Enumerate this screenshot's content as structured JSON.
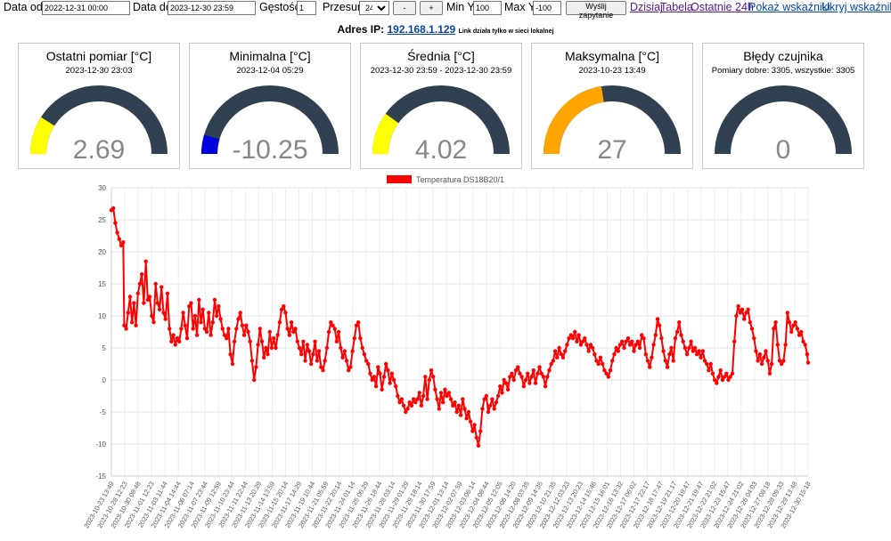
{
  "toolbar": {
    "date_from_label": "Data od",
    "date_from_value": "2022-12-31 00:00",
    "date_to_label": "Data do",
    "date_to_value": "2023-12-30 23:59",
    "density_label": "Gęstość",
    "density_value": "1",
    "shift_label": "Przesuń",
    "shift_value": "24h",
    "minus_label": "-",
    "plus_label": "+",
    "min_y_label": "Min Y",
    "min_y_value": "100",
    "max_y_label": "Max Y",
    "max_y_value": "-100",
    "submit_label": "Wyślij zapytanie",
    "link_today": "Dzisiaj",
    "link_table": "Tabela",
    "link_last24": "Ostatnie 24h",
    "link_show": "Pokaż wskaźniki",
    "link_hide": "Ukryj wskaźniki"
  },
  "ip": {
    "label": "Adres IP:",
    "address": "192.168.1.129",
    "note": "Link działa tylko w sieci lokalnej"
  },
  "gauges": [
    {
      "title": "Ostatni pomiar [°C]",
      "subtitle": "2023-12-30 23:03",
      "value": "2.69",
      "fraction": 0.18,
      "color": "#ffff00"
    },
    {
      "title": "Minimalna [°C]",
      "subtitle": "2023-12-04 05:29",
      "value": "-10.25",
      "fraction": 0.09,
      "color": "#0000dd"
    },
    {
      "title": "Średnia [°C]",
      "subtitle": "2023-12-30 23:59 - 2023-12-30 23:59",
      "value": "4.02",
      "fraction": 0.2,
      "color": "#ffff00"
    },
    {
      "title": "Maksymalna [°C]",
      "subtitle": "2023-10-23 13:49",
      "value": "27",
      "fraction": 0.45,
      "color": "#ffa500"
    },
    {
      "title": "Błędy czujnika",
      "subtitle": "Pomiary dobre: 3305, wszystkie: 3305",
      "value": "0",
      "fraction": 0,
      "color": "#ff0000"
    }
  ],
  "gauge_track_color": "#2f4050",
  "chart_data": {
    "type": "line",
    "legend": "Temperatura DS18B20/1",
    "legend_position": "top",
    "series_color": "#ff0000",
    "ylim": [
      -15,
      30
    ],
    "yticks": [
      30,
      25,
      20,
      15,
      10,
      5,
      0,
      -5,
      -10,
      -15
    ],
    "grid": true,
    "xlabels": [
      "2023-10-23 13:49",
      "2023-10-28 12:23",
      "2023-10-30 08:48",
      "2023-11-01 12:23",
      "2023-11-03 11:44",
      "2023-11-04 14:44",
      "2023-11-06 07:14",
      "2023-11-07 23:44",
      "2023-11-09 12:59",
      "2023-11-10 23:44",
      "2023-11-11 22:44",
      "2023-11-13 20:29",
      "2023-11-14 13:59",
      "2023-11-15 20:14",
      "2023-11-17 14:29",
      "2023-11-19 10:44",
      "2023-11-21 05:59",
      "2023-11-22 20:14",
      "2023-11-24 01:14",
      "2023-11-25 06:29",
      "2023-11-26 18:44",
      "2023-11-28 03:14",
      "2023-11-29 01:29",
      "2023-11-29 18:14",
      "2023-11-30 17:59",
      "2023-12-01 13:14",
      "2023-12-02 07:59",
      "2023-12-03 06:14",
      "2023-12-04 08:44",
      "2023-12-05 12:05",
      "2023-12-06 14:20",
      "2023-12-08 03:35",
      "2023-12-09 14:35",
      "2023-12-10 21:35",
      "2023-12-12 03:23",
      "2023-12-13 20:23",
      "2023-12-14 15:46",
      "2023-12-15 16:01",
      "2023-12-16 13:32",
      "2023-12-17 06:02",
      "2023-12-17 22:17",
      "2023-12-18 17:47",
      "2023-12-19 21:17",
      "2023-12-20 19:47",
      "2023-12-21 19:47",
      "2023-12-22 21:02",
      "2023-12-23 15:47",
      "2023-12-24 21:02",
      "2023-12-26 04:03",
      "2023-12-27 08:18",
      "2023-12-28 09:33",
      "2023-12-29 13:48",
      "2023-12-30 15:18"
    ],
    "values": [
      [
        0,
        26.5
      ],
      [
        2,
        26.8
      ],
      [
        4,
        24.5
      ],
      [
        6,
        23.0
      ],
      [
        8,
        22.0
      ],
      [
        10,
        21.0
      ],
      [
        12,
        21.5
      ],
      [
        13,
        8.5
      ],
      [
        15,
        8.0
      ],
      [
        17,
        10.5
      ],
      [
        19,
        13.0
      ],
      [
        21,
        9.0
      ],
      [
        23,
        12.0
      ],
      [
        25,
        8.5
      ],
      [
        27,
        13.5
      ],
      [
        29,
        15.0
      ],
      [
        31,
        16.5
      ],
      [
        33,
        12.0
      ],
      [
        35,
        18.5
      ],
      [
        37,
        12.5
      ],
      [
        39,
        13.0
      ],
      [
        41,
        10.0
      ],
      [
        43,
        9.0
      ],
      [
        45,
        15.0
      ],
      [
        47,
        12.0
      ],
      [
        49,
        11.0
      ],
      [
        51,
        14.5
      ],
      [
        53,
        10.5
      ],
      [
        55,
        9.5
      ],
      [
        57,
        13.5
      ],
      [
        59,
        8.0
      ],
      [
        61,
        6.0
      ],
      [
        63,
        7.0
      ],
      [
        65,
        5.5
      ],
      [
        67,
        6.5
      ],
      [
        69,
        6.0
      ],
      [
        71,
        8.0
      ],
      [
        73,
        10.5
      ],
      [
        75,
        8.5
      ],
      [
        77,
        6.5
      ],
      [
        79,
        11.5
      ],
      [
        81,
        12.0
      ],
      [
        83,
        8.0
      ],
      [
        85,
        10.0
      ],
      [
        87,
        7.0
      ],
      [
        89,
        12.5
      ],
      [
        91,
        9.0
      ],
      [
        93,
        11.0
      ],
      [
        95,
        8.0
      ],
      [
        97,
        7.5
      ],
      [
        99,
        10.5
      ],
      [
        101,
        7.0
      ],
      [
        103,
        9.0
      ],
      [
        105,
        12.5
      ],
      [
        107,
        10.0
      ],
      [
        109,
        11.5
      ],
      [
        111,
        9.5
      ],
      [
        113,
        8.0
      ],
      [
        115,
        7.0
      ],
      [
        117,
        6.5
      ],
      [
        119,
        8.0
      ],
      [
        121,
        4.0
      ],
      [
        123,
        2.5
      ],
      [
        125,
        6.0
      ],
      [
        127,
        8.0
      ],
      [
        129,
        9.5
      ],
      [
        131,
        10.5
      ],
      [
        133,
        8.5
      ],
      [
        135,
        7.0
      ],
      [
        137,
        8.5
      ],
      [
        139,
        7.5
      ],
      [
        141,
        6.0
      ],
      [
        143,
        3.0
      ],
      [
        145,
        0.0
      ],
      [
        147,
        2.0
      ],
      [
        149,
        5.5
      ],
      [
        151,
        8.0
      ],
      [
        153,
        6.0
      ],
      [
        155,
        3.5
      ],
      [
        157,
        5.0
      ],
      [
        159,
        4.0
      ],
      [
        161,
        7.5
      ],
      [
        163,
        5.0
      ],
      [
        165,
        6.5
      ],
      [
        167,
        5.0
      ],
      [
        169,
        7.0
      ],
      [
        171,
        9.0
      ],
      [
        173,
        11.0
      ],
      [
        175,
        11.5
      ],
      [
        177,
        10.5
      ],
      [
        179,
        8.0
      ],
      [
        181,
        7.0
      ],
      [
        183,
        9.0
      ],
      [
        185,
        7.5
      ],
      [
        187,
        8.0
      ],
      [
        189,
        6.0
      ],
      [
        191,
        5.0
      ],
      [
        193,
        4.0
      ],
      [
        195,
        6.0
      ],
      [
        197,
        3.0
      ],
      [
        199,
        5.5
      ],
      [
        201,
        4.5
      ],
      [
        203,
        2.5
      ],
      [
        205,
        4.0
      ],
      [
        207,
        6.0
      ],
      [
        209,
        3.0
      ],
      [
        211,
        4.5
      ],
      [
        213,
        2.0
      ],
      [
        215,
        1.5
      ],
      [
        217,
        3.0
      ],
      [
        219,
        5.0
      ],
      [
        221,
        7.5
      ],
      [
        223,
        9.0
      ],
      [
        225,
        8.5
      ],
      [
        227,
        8.0
      ],
      [
        229,
        6.0
      ],
      [
        231,
        7.5
      ],
      [
        233,
        5.0
      ],
      [
        235,
        3.5
      ],
      [
        237,
        4.5
      ],
      [
        239,
        3.0
      ],
      [
        241,
        1.5
      ],
      [
        243,
        2.0
      ],
      [
        245,
        4.5
      ],
      [
        247,
        6.5
      ],
      [
        249,
        8.5
      ],
      [
        251,
        9.0
      ],
      [
        253,
        6.5
      ],
      [
        255,
        5.0
      ],
      [
        257,
        4.0
      ],
      [
        259,
        3.0
      ],
      [
        261,
        2.5
      ],
      [
        263,
        1.0
      ],
      [
        265,
        0.0
      ],
      [
        267,
        0.5
      ],
      [
        269,
        -1.0
      ],
      [
        271,
        2.0
      ],
      [
        273,
        1.0
      ],
      [
        275,
        -1.5
      ],
      [
        277,
        0.5
      ],
      [
        279,
        2.5
      ],
      [
        281,
        1.5
      ],
      [
        283,
        -0.5
      ],
      [
        285,
        1.0
      ],
      [
        287,
        0.0
      ],
      [
        289,
        -1.0
      ],
      [
        291,
        -2.5
      ],
      [
        293,
        -3.5
      ],
      [
        295,
        -3.0
      ],
      [
        297,
        -4.0
      ],
      [
        299,
        -5.0
      ],
      [
        301,
        -4.5
      ],
      [
        303,
        -3.5
      ],
      [
        305,
        -4.0
      ],
      [
        307,
        -3.0
      ],
      [
        309,
        -3.5
      ],
      [
        311,
        -3.0
      ],
      [
        313,
        -2.0
      ],
      [
        315,
        -4.0
      ],
      [
        317,
        -2.5
      ],
      [
        319,
        0.5
      ],
      [
        321,
        -3.0
      ],
      [
        323,
        0.0
      ],
      [
        325,
        1.5
      ],
      [
        327,
        0.5
      ],
      [
        329,
        -1.5
      ],
      [
        331,
        -3.0
      ],
      [
        333,
        -4.5
      ],
      [
        335,
        -2.0
      ],
      [
        337,
        -3.5
      ],
      [
        339,
        -1.5
      ],
      [
        341,
        -2.5
      ],
      [
        343,
        -2.0
      ],
      [
        345,
        -3.0
      ],
      [
        347,
        -4.0
      ],
      [
        349,
        -3.5
      ],
      [
        351,
        -5.0
      ],
      [
        353,
        -4.0
      ],
      [
        355,
        -5.5
      ],
      [
        357,
        -3.0
      ],
      [
        359,
        -4.5
      ],
      [
        361,
        -6.0
      ],
      [
        363,
        -5.0
      ],
      [
        365,
        -6.5
      ],
      [
        367,
        -8.0
      ],
      [
        369,
        -7.0
      ],
      [
        371,
        -9.0
      ],
      [
        373,
        -10.25
      ],
      [
        375,
        -8.0
      ],
      [
        377,
        -4.5
      ],
      [
        379,
        -3.0
      ],
      [
        381,
        -2.5
      ],
      [
        383,
        -5.0
      ],
      [
        385,
        -4.0
      ],
      [
        387,
        -3.0
      ],
      [
        389,
        -4.5
      ],
      [
        391,
        -3.5
      ],
      [
        393,
        -2.5
      ],
      [
        395,
        -1.0
      ],
      [
        397,
        -2.0
      ],
      [
        399,
        0.0
      ],
      [
        401,
        -0.5
      ],
      [
        403,
        -1.5
      ],
      [
        405,
        0.5
      ],
      [
        407,
        1.0
      ],
      [
        409,
        0.0
      ],
      [
        411,
        1.5
      ],
      [
        413,
        2.0
      ],
      [
        415,
        1.0
      ],
      [
        417,
        0.5
      ],
      [
        419,
        -1.0
      ],
      [
        421,
        0.0
      ],
      [
        423,
        1.0
      ],
      [
        425,
        -0.5
      ],
      [
        427,
        0.5
      ],
      [
        429,
        1.5
      ],
      [
        431,
        -0.5
      ],
      [
        433,
        1.0
      ],
      [
        435,
        2.0
      ],
      [
        437,
        1.0
      ],
      [
        439,
        0.5
      ],
      [
        441,
        -1.0
      ],
      [
        443,
        0.5
      ],
      [
        445,
        1.5
      ],
      [
        447,
        2.5
      ],
      [
        449,
        3.0
      ],
      [
        451,
        4.5
      ],
      [
        453,
        3.5
      ],
      [
        455,
        5.0
      ],
      [
        457,
        4.0
      ],
      [
        459,
        3.5
      ],
      [
        461,
        4.5
      ],
      [
        463,
        5.5
      ],
      [
        465,
        6.5
      ],
      [
        467,
        7.0
      ],
      [
        469,
        6.5
      ],
      [
        471,
        7.5
      ],
      [
        473,
        6.0
      ],
      [
        475,
        7.0
      ],
      [
        477,
        5.5
      ],
      [
        479,
        6.0
      ],
      [
        481,
        6.5
      ],
      [
        483,
        5.5
      ],
      [
        485,
        4.5
      ],
      [
        487,
        5.5
      ],
      [
        489,
        5.0
      ],
      [
        491,
        4.0
      ],
      [
        493,
        3.0
      ],
      [
        495,
        2.5
      ],
      [
        497,
        3.5
      ],
      [
        499,
        2.5
      ],
      [
        501,
        1.5
      ],
      [
        503,
        1.0
      ],
      [
        505,
        0.5
      ],
      [
        507,
        1.5
      ],
      [
        509,
        3.0
      ],
      [
        511,
        4.0
      ],
      [
        513,
        5.0
      ],
      [
        515,
        4.5
      ],
      [
        517,
        5.5
      ],
      [
        519,
        6.0
      ],
      [
        521,
        5.0
      ],
      [
        523,
        6.0
      ],
      [
        525,
        6.5
      ],
      [
        527,
        5.5
      ],
      [
        529,
        6.0
      ],
      [
        531,
        4.5
      ],
      [
        533,
        5.5
      ],
      [
        535,
        6.0
      ],
      [
        537,
        5.0
      ],
      [
        539,
        7.0
      ],
      [
        541,
        6.5
      ],
      [
        543,
        4.0
      ],
      [
        545,
        3.0
      ],
      [
        547,
        2.0
      ],
      [
        549,
        3.5
      ],
      [
        551,
        5.5
      ],
      [
        553,
        7.0
      ],
      [
        555,
        9.5
      ],
      [
        557,
        8.5
      ],
      [
        559,
        6.5
      ],
      [
        561,
        4.5
      ],
      [
        563,
        3.0
      ],
      [
        565,
        2.0
      ],
      [
        567,
        4.0
      ],
      [
        569,
        5.0
      ],
      [
        571,
        3.0
      ],
      [
        573,
        6.5
      ],
      [
        575,
        7.5
      ],
      [
        577,
        9.0
      ],
      [
        579,
        7.0
      ],
      [
        581,
        6.0
      ],
      [
        583,
        5.0
      ],
      [
        585,
        4.0
      ],
      [
        587,
        5.0
      ],
      [
        589,
        6.0
      ],
      [
        591,
        4.5
      ],
      [
        593,
        5.0
      ],
      [
        595,
        4.0
      ],
      [
        597,
        4.5
      ],
      [
        599,
        3.5
      ],
      [
        601,
        4.5
      ],
      [
        603,
        3.0
      ],
      [
        605,
        2.5
      ],
      [
        607,
        1.5
      ],
      [
        609,
        2.5
      ],
      [
        611,
        1.0
      ],
      [
        613,
        0.0
      ],
      [
        615,
        -0.5
      ],
      [
        617,
        0.5
      ],
      [
        619,
        1.5
      ],
      [
        621,
        0.0
      ],
      [
        623,
        0.5
      ],
      [
        625,
        1.0
      ],
      [
        627,
        0.0
      ],
      [
        629,
        0.5
      ],
      [
        631,
        1.0
      ],
      [
        633,
        6.0
      ],
      [
        635,
        10.0
      ],
      [
        637,
        11.5
      ],
      [
        639,
        10.5
      ],
      [
        641,
        11.0
      ],
      [
        643,
        9.5
      ],
      [
        645,
        10.5
      ],
      [
        647,
        11.0
      ],
      [
        649,
        9.0
      ],
      [
        651,
        8.0
      ],
      [
        653,
        6.5
      ],
      [
        655,
        4.5
      ],
      [
        657,
        3.0
      ],
      [
        659,
        4.0
      ],
      [
        661,
        2.5
      ],
      [
        663,
        3.5
      ],
      [
        665,
        4.5
      ],
      [
        667,
        3.0
      ],
      [
        669,
        1.0
      ],
      [
        671,
        2.5
      ],
      [
        673,
        8.0
      ],
      [
        675,
        9.0
      ],
      [
        677,
        5.5
      ],
      [
        679,
        3.0
      ],
      [
        681,
        2.5
      ],
      [
        683,
        3.0
      ],
      [
        685,
        5.5
      ],
      [
        687,
        10.5
      ],
      [
        689,
        9.0
      ],
      [
        691,
        7.5
      ],
      [
        693,
        8.5
      ],
      [
        695,
        9.0
      ],
      [
        697,
        8.0
      ],
      [
        699,
        7.0
      ],
      [
        701,
        7.5
      ],
      [
        703,
        6.0
      ],
      [
        705,
        5.5
      ],
      [
        707,
        4.0
      ],
      [
        708,
        2.69
      ]
    ],
    "x_max": 708
  }
}
